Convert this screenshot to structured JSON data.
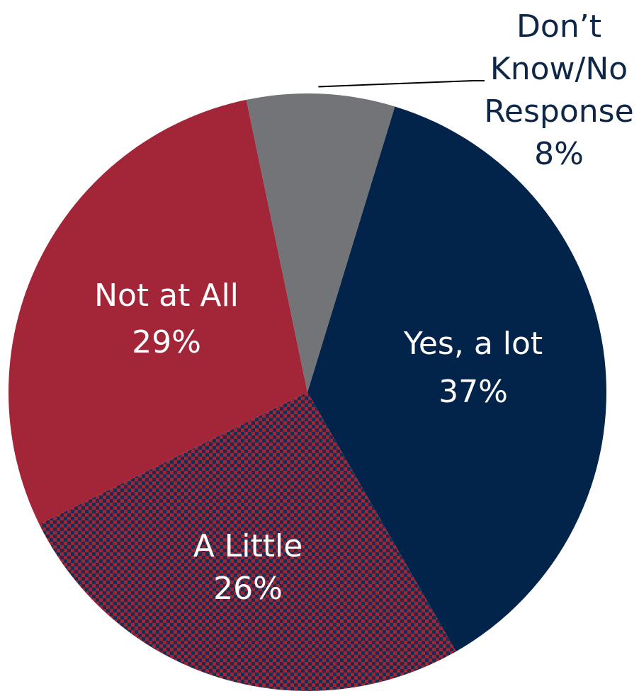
{
  "chart_data": {
    "type": "pie",
    "title": "",
    "slices": [
      {
        "label": "Yes, a lot",
        "value": 37,
        "value_label": "37%",
        "color": "#03244a",
        "pattern": "solid",
        "label_position": "inside"
      },
      {
        "label": "A Little",
        "value": 26,
        "value_label": "26%",
        "color": "#9f2538",
        "secondary_color": "#1e2b4d",
        "pattern": "checkerboard",
        "label_position": "inside"
      },
      {
        "label": "Not at All",
        "value": 29,
        "value_label": "29%",
        "color": "#a32638",
        "pattern": "solid",
        "label_position": "inside"
      },
      {
        "label": "Don’t Know/No Response",
        "label_lines": [
          "Don’t",
          "Know/No",
          "Response"
        ],
        "value": 8,
        "value_label": "8%",
        "color": "#737478",
        "pattern": "solid",
        "label_position": "outside"
      }
    ],
    "start_angle_deg": 17,
    "direction": "clockwise",
    "legend": "none"
  }
}
